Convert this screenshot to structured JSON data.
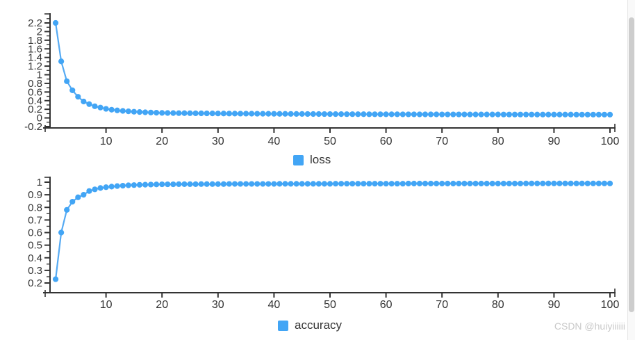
{
  "watermark": {
    "text": "CSDN @huiyiiiiii",
    "color": "#c9c9c9"
  },
  "theme": {
    "accent_blue": "#42a5f5",
    "axis_color": "#333333",
    "label_color": "#333333"
  },
  "epochs": [
    1,
    2,
    3,
    4,
    5,
    6,
    7,
    8,
    9,
    10,
    11,
    12,
    13,
    14,
    15,
    16,
    17,
    18,
    19,
    20,
    21,
    22,
    23,
    24,
    25,
    26,
    27,
    28,
    29,
    30,
    31,
    32,
    33,
    34,
    35,
    36,
    37,
    38,
    39,
    40,
    41,
    42,
    43,
    44,
    45,
    46,
    47,
    48,
    49,
    50,
    51,
    52,
    53,
    54,
    55,
    56,
    57,
    58,
    59,
    60,
    61,
    62,
    63,
    64,
    65,
    66,
    67,
    68,
    69,
    70,
    71,
    72,
    73,
    74,
    75,
    76,
    77,
    78,
    79,
    80,
    81,
    82,
    83,
    84,
    85,
    86,
    87,
    88,
    89,
    90,
    91,
    92,
    93,
    94,
    95,
    96,
    97,
    98,
    99,
    100
  ],
  "chart_data": [
    {
      "type": "line",
      "series_name": "loss",
      "legend_label": "loss",
      "legend_position": "bottom-center",
      "color": "#42a5f5",
      "line_color": "#55aaf3",
      "axis_color": "#333333",
      "grid": false,
      "marker": "circle",
      "xlim": [
        0,
        101
      ],
      "ylim": [
        -0.2,
        2.42
      ],
      "x_axis": {
        "tick_labels": [
          "10",
          "20",
          "30",
          "40",
          "50",
          "60",
          "70",
          "80",
          "90",
          "100"
        ],
        "tick_values": [
          10,
          20,
          30,
          40,
          50,
          60,
          70,
          80,
          90,
          100
        ]
      },
      "y_axis": {
        "tick_labels": [
          "2.2",
          "2",
          "1.8",
          "1.6",
          "1.4",
          "1.2",
          "1",
          "0.8",
          "0.6",
          "0.4",
          "0.2",
          "0",
          "-0.2"
        ],
        "tick_values": [
          2.2,
          2.0,
          1.8,
          1.6,
          1.4,
          1.2,
          1.0,
          0.8,
          0.6,
          0.4,
          0.2,
          0.0,
          -0.2
        ],
        "minor_tick_values": [
          2.3,
          2.1,
          1.9,
          1.7,
          1.5,
          1.3,
          1.1,
          0.9,
          0.7,
          0.5,
          0.3,
          0.1,
          -0.1
        ]
      },
      "values": [
        2.2,
        1.31,
        0.85,
        0.64,
        0.49,
        0.38,
        0.32,
        0.27,
        0.24,
        0.21,
        0.19,
        0.175,
        0.162,
        0.152,
        0.143,
        0.136,
        0.13,
        0.125,
        0.12,
        0.116,
        0.114,
        0.112,
        0.111,
        0.11,
        0.109,
        0.107,
        0.106,
        0.105,
        0.104,
        0.103,
        0.102,
        0.101,
        0.1,
        0.099,
        0.099,
        0.098,
        0.097,
        0.096,
        0.096,
        0.095,
        0.094,
        0.094,
        0.093,
        0.092,
        0.092,
        0.091,
        0.09,
        0.09,
        0.089,
        0.089,
        0.088,
        0.088,
        0.087,
        0.087,
        0.086,
        0.086,
        0.085,
        0.085,
        0.085,
        0.084,
        0.084,
        0.084,
        0.083,
        0.083,
        0.083,
        0.082,
        0.082,
        0.082,
        0.082,
        0.081,
        0.081,
        0.081,
        0.081,
        0.081,
        0.08,
        0.08,
        0.08,
        0.08,
        0.08,
        0.08,
        0.079,
        0.079,
        0.079,
        0.079,
        0.079,
        0.079,
        0.078,
        0.078,
        0.078,
        0.078,
        0.078,
        0.078,
        0.078,
        0.077,
        0.077,
        0.077,
        0.077,
        0.077,
        0.077,
        0.077
      ]
    },
    {
      "type": "line",
      "series_name": "accuracy",
      "legend_label": "accuracy",
      "legend_position": "bottom-center",
      "color": "#42a5f5",
      "line_color": "#55aaf3",
      "axis_color": "#333333",
      "grid": false,
      "marker": "circle",
      "xlim": [
        0,
        101
      ],
      "ylim": [
        0.2,
        1.04
      ],
      "x_axis": {
        "tick_labels": [
          "10",
          "20",
          "30",
          "40",
          "50",
          "60",
          "70",
          "80",
          "90",
          "100"
        ],
        "tick_values": [
          10,
          20,
          30,
          40,
          50,
          60,
          70,
          80,
          90,
          100
        ]
      },
      "y_axis": {
        "tick_labels": [
          "1",
          "0.9",
          "0.8",
          "0.7",
          "0.6",
          "0.5",
          "0.4",
          "0.3",
          "0.2"
        ],
        "tick_values": [
          1.0,
          0.9,
          0.8,
          0.7,
          0.6,
          0.5,
          0.4,
          0.3,
          0.2
        ],
        "minor_tick_values": [
          0.95,
          0.85,
          0.75,
          0.65,
          0.55,
          0.45,
          0.35,
          0.25
        ]
      },
      "values": [
        0.23,
        0.6,
        0.78,
        0.845,
        0.88,
        0.9,
        0.93,
        0.943,
        0.954,
        0.96,
        0.965,
        0.969,
        0.972,
        0.975,
        0.977,
        0.979,
        0.98,
        0.981,
        0.982,
        0.983,
        0.983,
        0.983,
        0.984,
        0.984,
        0.984,
        0.984,
        0.985,
        0.985,
        0.985,
        0.985,
        0.985,
        0.986,
        0.986,
        0.986,
        0.986,
        0.986,
        0.986,
        0.986,
        0.986,
        0.986,
        0.987,
        0.987,
        0.987,
        0.987,
        0.987,
        0.987,
        0.987,
        0.987,
        0.987,
        0.987,
        0.988,
        0.988,
        0.988,
        0.988,
        0.988,
        0.988,
        0.988,
        0.988,
        0.988,
        0.988,
        0.988,
        0.988,
        0.988,
        0.989,
        0.989,
        0.989,
        0.989,
        0.989,
        0.989,
        0.989,
        0.989,
        0.989,
        0.989,
        0.989,
        0.989,
        0.989,
        0.989,
        0.989,
        0.989,
        0.989,
        0.989,
        0.989,
        0.989,
        0.989,
        0.99,
        0.99,
        0.99,
        0.99,
        0.99,
        0.99,
        0.99,
        0.99,
        0.99,
        0.99,
        0.99,
        0.99,
        0.99,
        0.99,
        0.99,
        0.99
      ]
    }
  ]
}
